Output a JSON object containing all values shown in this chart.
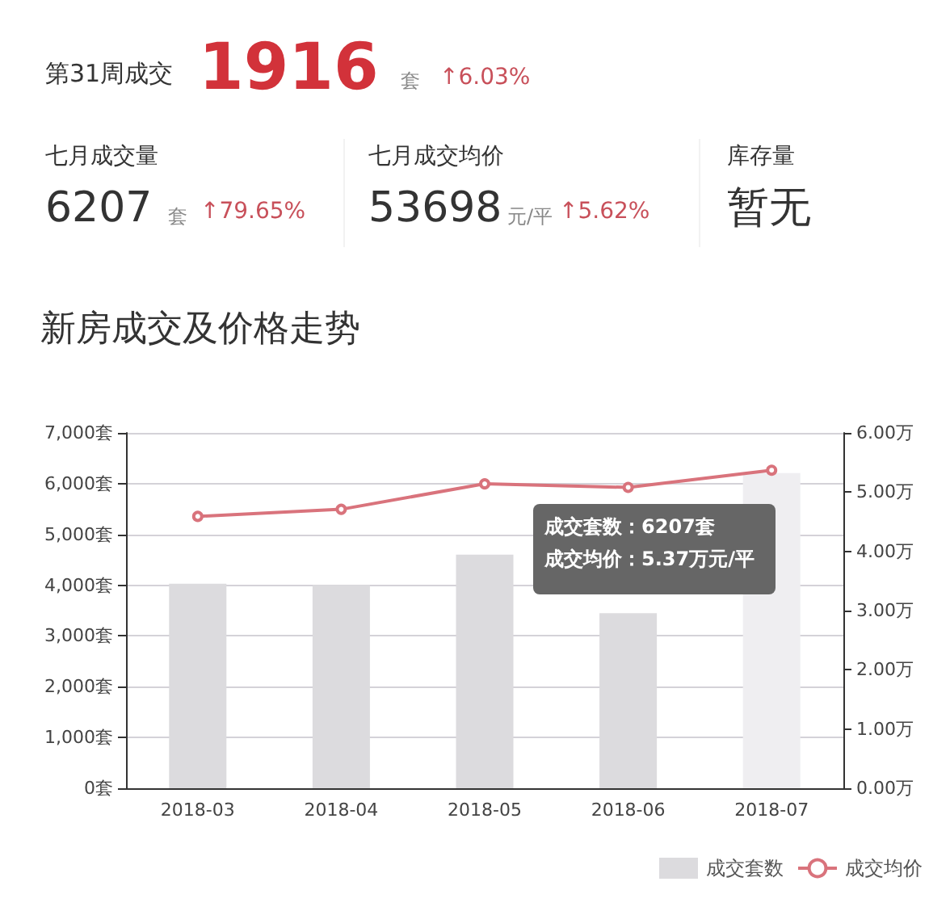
{
  "chart_data": [
    {
      "type": "other",
      "annotations": [
        "第31周成交",
        "1916",
        "套",
        "↑6.03%",
        "七月成交量",
        "6207",
        "套",
        "↑79.65%",
        "七月成交均价",
        "53698",
        "元/平",
        "↑5.62%",
        "库存量",
        "暂无"
      ]
    },
    {
      "type": "bar",
      "title": "新房成交及价格走势",
      "categories": [
        "2018-03",
        "2018-04",
        "2018-05",
        "2018-06",
        "2018-07"
      ],
      "series": [
        {
          "name": "成交套数",
          "type": "bar",
          "colors": [
            "#dcdbde",
            "#dcdbde",
            "#dcdbde",
            "#dcdbde",
            "#efeef1"
          ],
          "values": [
            4030,
            4000,
            4600,
            3450,
            6207
          ]
        },
        {
          "name": "成交均价",
          "type": "line",
          "axis": "y2",
          "color": "#d9737c",
          "values": [
            4.59,
            4.71,
            5.14,
            5.08,
            5.37
          ]
        }
      ],
      "ylim": [
        0,
        7000
      ],
      "yticks": [
        {
          "value": 0,
          "label": "0套"
        },
        {
          "value": 1000,
          "label": "1,000套"
        },
        {
          "value": 2000,
          "label": "2,000套"
        },
        {
          "value": 3000,
          "label": "3,000套"
        },
        {
          "value": 4000,
          "label": "4,000套"
        },
        {
          "value": 5000,
          "label": "5,000套"
        },
        {
          "value": 6000,
          "label": "6,000套"
        },
        {
          "value": 7000,
          "label": "7,000套"
        }
      ],
      "y2lim": [
        0,
        6
      ],
      "y2ticks": [
        {
          "value": 0,
          "label": "0.00万"
        },
        {
          "value": 1,
          "label": "1.00万"
        },
        {
          "value": 2,
          "label": "2.00万"
        },
        {
          "value": 3,
          "label": "3.00万"
        },
        {
          "value": 4,
          "label": "4.00万"
        },
        {
          "value": 5,
          "label": "5.00万"
        },
        {
          "value": 6,
          "label": "6.00万"
        }
      ],
      "annotations": [
        "成交套数：6207套",
        "成交均价：5.37万元/平"
      ],
      "grid": "y",
      "legend": "bottom right",
      "marker": "circle",
      "line_style": "solid"
    }
  ]
}
